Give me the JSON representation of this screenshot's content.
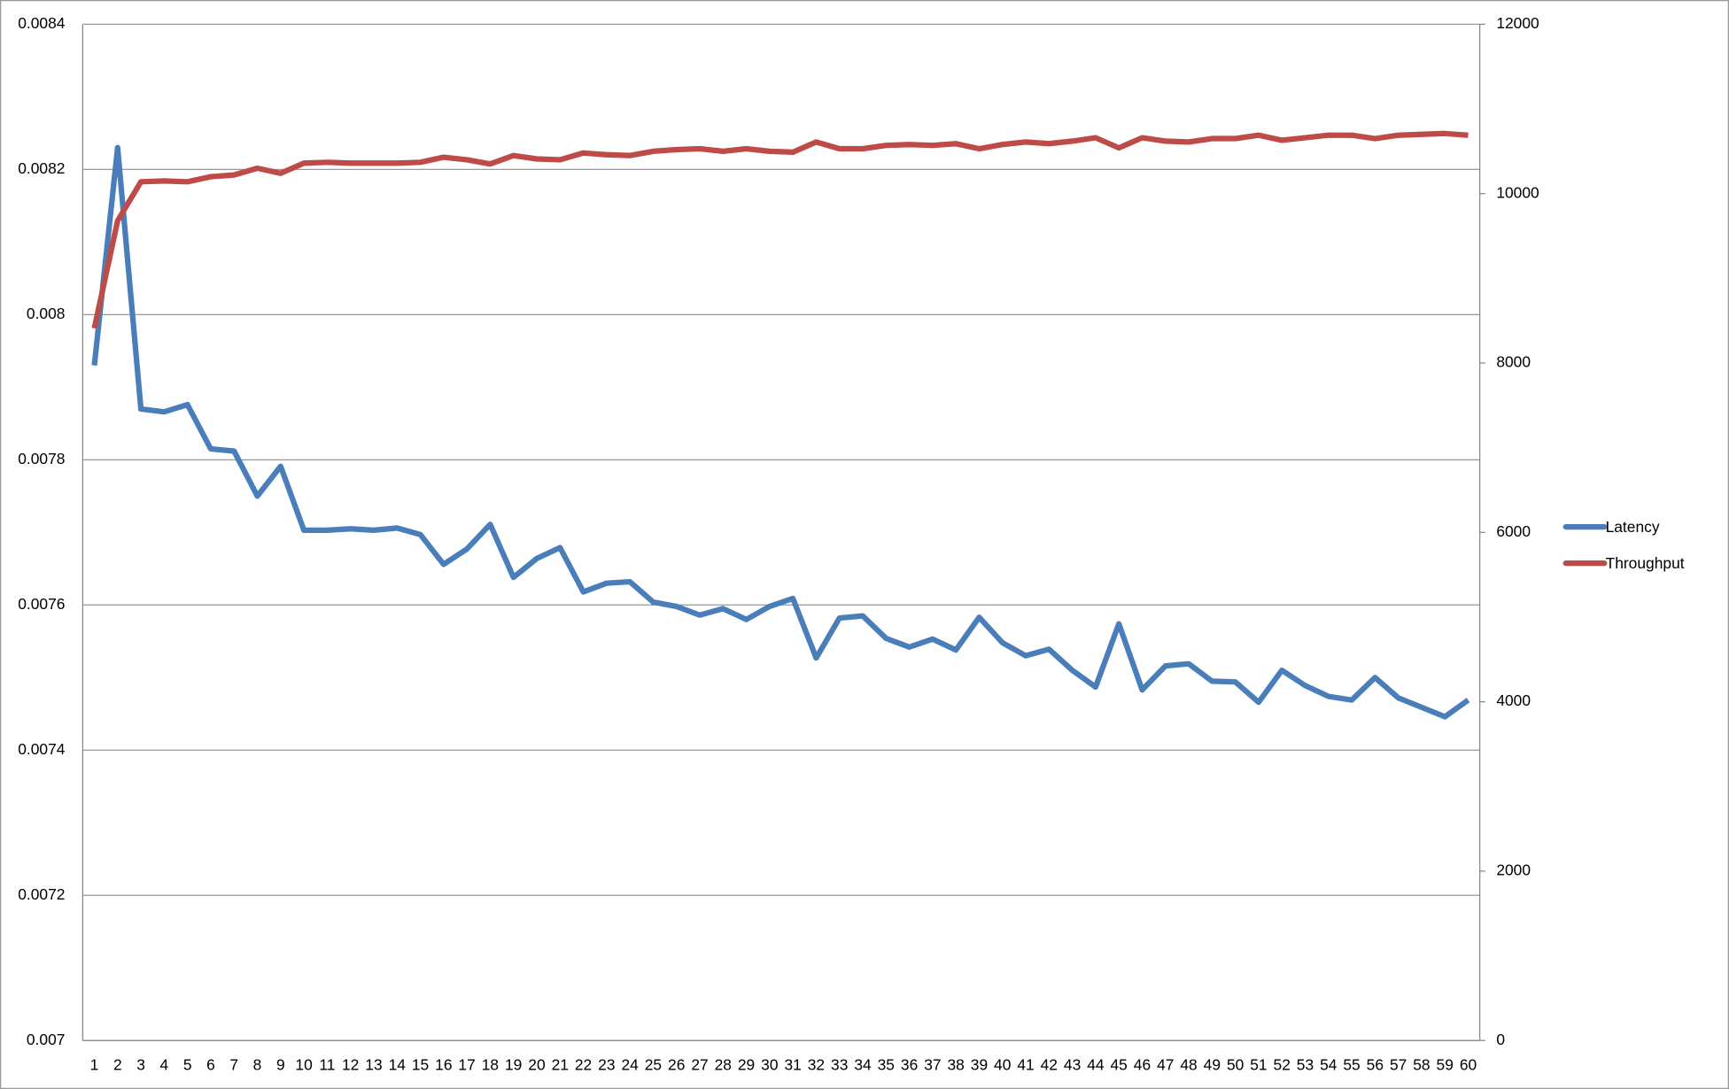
{
  "chart_data": {
    "type": "line",
    "categories": [
      "1",
      "2",
      "3",
      "4",
      "5",
      "6",
      "7",
      "8",
      "9",
      "10",
      "11",
      "12",
      "13",
      "14",
      "15",
      "16",
      "17",
      "18",
      "19",
      "20",
      "21",
      "22",
      "23",
      "24",
      "25",
      "26",
      "27",
      "28",
      "29",
      "30",
      "31",
      "32",
      "33",
      "34",
      "35",
      "36",
      "37",
      "38",
      "39",
      "40",
      "41",
      "42",
      "43",
      "44",
      "45",
      "46",
      "47",
      "48",
      "49",
      "50",
      "51",
      "52",
      "53",
      "54",
      "55",
      "56",
      "57",
      "58",
      "59",
      "60"
    ],
    "ylim": [
      0.007,
      0.0084
    ],
    "yticks": [
      0.007,
      0.0072,
      0.0074,
      0.0076,
      0.0078,
      0.008,
      0.0082,
      0.0084
    ],
    "y2lim": [
      0,
      12000
    ],
    "y2ticks": [
      0,
      2000,
      4000,
      6000,
      8000,
      10000,
      12000
    ],
    "grid": true,
    "legend": "right",
    "series": [
      {
        "name": "Latency",
        "color": "#4a7ebb",
        "values": [
          0.00793,
          0.00823,
          0.00787,
          0.007866,
          0.007876,
          0.007815,
          0.007812,
          0.00775,
          0.007791,
          0.007703,
          0.007703,
          0.007705,
          0.007703,
          0.007706,
          0.007697,
          0.007656,
          0.007677,
          0.007711,
          0.007638,
          0.007664,
          0.007679,
          0.007618,
          0.00763,
          0.007632,
          0.007604,
          0.007598,
          0.007586,
          0.007595,
          0.00758,
          0.007598,
          0.007609,
          0.007527,
          0.007582,
          0.007585,
          0.007554,
          0.007542,
          0.007553,
          0.007538,
          0.007583,
          0.007548,
          0.00753,
          0.007539,
          0.00751,
          0.007487,
          0.007574,
          0.007483,
          0.007516,
          0.007519,
          0.007495,
          0.007494,
          0.007466,
          0.00751,
          0.007489,
          0.007474,
          0.007469,
          0.0075,
          0.007472,
          0.007459,
          0.007446,
          0.007469
        ]
      },
      {
        "name": "Throughput",
        "color": "#be4b48",
        "axis": "y2",
        "values": [
          8410,
          9680,
          10140,
          10150,
          10140,
          10200,
          10220,
          10300,
          10240,
          10360,
          10370,
          10360,
          10360,
          10360,
          10370,
          10430,
          10400,
          10350,
          10450,
          10410,
          10400,
          10480,
          10460,
          10450,
          10500,
          10520,
          10530,
          10500,
          10530,
          10500,
          10490,
          10610,
          10530,
          10530,
          10570,
          10580,
          10570,
          10590,
          10530,
          10580,
          10610,
          10590,
          10620,
          10660,
          10540,
          10660,
          10620,
          10610,
          10650,
          10650,
          10690,
          10630,
          10660,
          10690,
          10690,
          10650,
          10690,
          10700,
          10710,
          10690
        ]
      }
    ]
  }
}
